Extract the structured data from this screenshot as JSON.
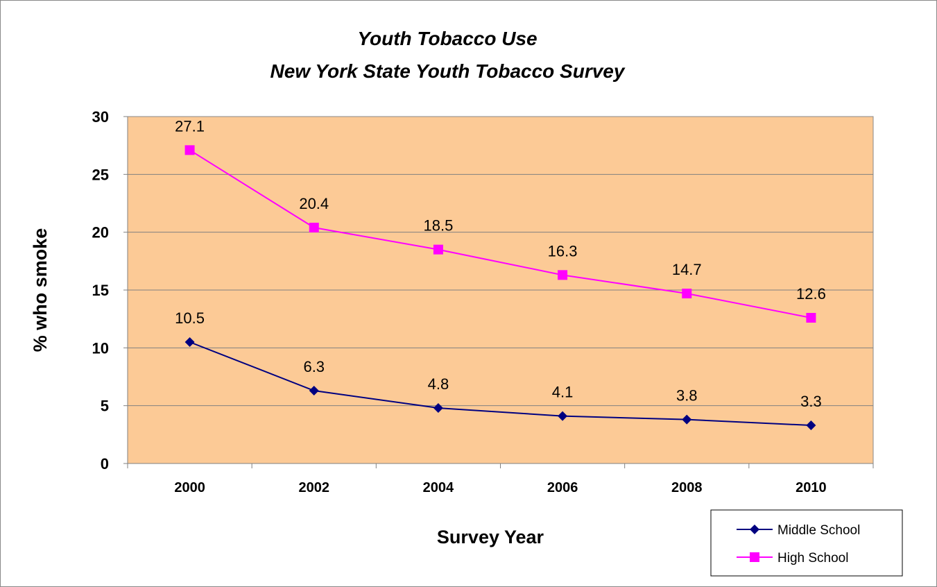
{
  "chart_data": {
    "type": "line",
    "title": "Youth Tobacco Use",
    "subtitle": "New York State Youth Tobacco Survey",
    "xlabel": "Survey Year",
    "ylabel": "% who smoke",
    "categories": [
      "2000",
      "2002",
      "2004",
      "2006",
      "2008",
      "2010"
    ],
    "ylim": [
      0,
      30
    ],
    "yticks": [
      0,
      5,
      10,
      15,
      20,
      25,
      30
    ],
    "grid": true,
    "legend_position": "bottom-right",
    "plot_background": "#fcca96",
    "series": [
      {
        "name": "Middle School",
        "values": [
          10.5,
          6.3,
          4.8,
          4.1,
          3.8,
          3.3
        ],
        "labels": [
          "10.5",
          "6.3",
          "4.8",
          "4.1",
          "3.8",
          "3.3"
        ],
        "color": "#000080",
        "marker": "diamond"
      },
      {
        "name": "High School",
        "values": [
          27.1,
          20.4,
          18.5,
          16.3,
          14.7,
          12.6
        ],
        "labels": [
          "27.1",
          "20.4",
          "18.5",
          "16.3",
          "14.7",
          "12.6"
        ],
        "color": "#ff00ff",
        "marker": "square"
      }
    ]
  }
}
